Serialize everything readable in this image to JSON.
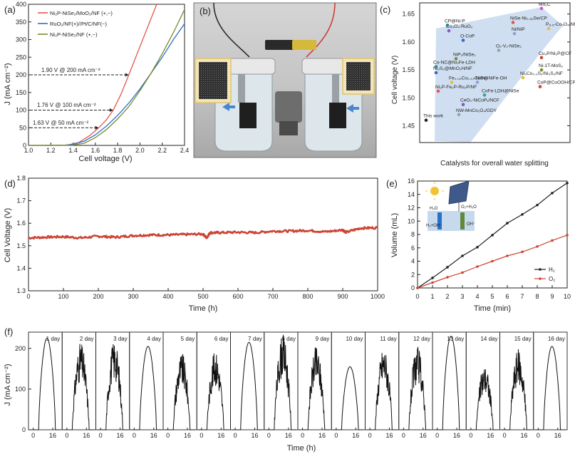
{
  "panel_labels": [
    "(a)",
    "(b)",
    "(c)",
    "(d)",
    "(e)",
    "(f)"
  ],
  "colors": {
    "red": "#e8564b",
    "blue": "#2c6fc7",
    "olive": "#7a8a2a",
    "black": "#222222",
    "drab": "#cc4433",
    "teal": "#2aa1a8",
    "purple": "#8a56c6",
    "yellow": "#e3c23a",
    "arrow_band": "#a8c4e6"
  },
  "chart_data": [
    {
      "id": "a",
      "type": "line",
      "xlabel": "Cell voltage (V)",
      "ylabel": "J (mA cm⁻²)",
      "xlim": [
        1.0,
        2.4
      ],
      "ylim": [
        0,
        400
      ],
      "xticks": [
        "1.0",
        "1.2",
        "1.4",
        "1.6",
        "1.8",
        "2.0",
        "2.2",
        "2.4"
      ],
      "yticks": [
        "0",
        "50",
        "100",
        "150",
        "200",
        "250",
        "300",
        "350",
        "400"
      ],
      "legend": [
        {
          "label": "Ni₂P-NiSe₂/MoO₂/NF (+,−)",
          "color": "#e8564b"
        },
        {
          "label": "RuO₂/NF(+)//Pt/C/NF(−)",
          "color": "#2c6fc7"
        },
        {
          "label": "Ni₂P-NiSe₂/NF (+,−)",
          "color": "#7a8a2a"
        }
      ],
      "series": [
        {
          "name": "Ni₂P-NiSe₂/MoO₂/NF (+,−)",
          "color": "#e8564b",
          "x": [
            1.0,
            1.2,
            1.35,
            1.45,
            1.55,
            1.63,
            1.7,
            1.76,
            1.83,
            1.9,
            2.0,
            2.1,
            2.15
          ],
          "y": [
            0,
            0,
            1,
            8,
            28,
            50,
            73,
            100,
            145,
            200,
            280,
            360,
            400
          ]
        },
        {
          "name": "RuO₂/NF(+)//Pt/C/NF(−)",
          "color": "#2c6fc7",
          "x": [
            1.0,
            1.3,
            1.4,
            1.5,
            1.6,
            1.7,
            1.8,
            1.9,
            2.0,
            2.1,
            2.2,
            2.3,
            2.4
          ],
          "y": [
            0,
            0,
            3,
            12,
            30,
            55,
            85,
            120,
            160,
            205,
            250,
            300,
            345
          ]
        },
        {
          "name": "Ni₂P-NiSe₂/NF (+,−)",
          "color": "#7a8a2a",
          "x": [
            1.0,
            1.4,
            1.5,
            1.6,
            1.7,
            1.8,
            1.9,
            2.0,
            2.1,
            2.2,
            2.3,
            2.4
          ],
          "y": [
            0,
            1,
            6,
            22,
            45,
            75,
            110,
            155,
            205,
            260,
            320,
            385
          ]
        }
      ],
      "annotations": [
        {
          "text": "1.90 V @ 200 mA cm⁻²",
          "x": 1.9,
          "y": 200
        },
        {
          "text": "1.76 V @ 100 mA cm⁻²",
          "x": 1.76,
          "y": 100
        },
        {
          "text": "1.63 V @ 50 mA cm⁻²",
          "x": 1.63,
          "y": 50
        }
      ]
    },
    {
      "id": "c",
      "type": "scatter",
      "xlabel": "Catalysts for overall water splitting",
      "ylabel": "Cell voltage (V)",
      "ylim": [
        1.42,
        1.67
      ],
      "yticks": [
        "1.45",
        "1.50",
        "1.55",
        "1.60",
        "1.65"
      ],
      "points": [
        {
          "label": "CP@Ni-P",
          "y": 1.63,
          "color": "#2aa1a8"
        },
        {
          "label": "Co₃O₄-RuO₂",
          "y": 1.62,
          "color": "#8a56c6"
        },
        {
          "label": "O-CoP",
          "y": 1.603,
          "color": "#2c6fc7"
        },
        {
          "label": "NiSe-Ni₀.₈₅Se/CP",
          "y": 1.635,
          "color": "#e8564b"
        },
        {
          "label": "Ni/NiP",
          "y": 1.615,
          "color": "#9a9ad0"
        },
        {
          "label": "P₈.₆-Co₃O₄/NF",
          "y": 1.624,
          "color": "#e3c23a"
        },
        {
          "label": "Mo₂C",
          "y": 1.66,
          "color": "#cc55cc"
        },
        {
          "label": "O₂-V₂-NiSe₂",
          "y": 1.585,
          "color": "#a0a0a0"
        },
        {
          "label": "NiP₂/NiSe₂",
          "y": 1.57,
          "color": "#7a8a2a"
        },
        {
          "label": "Cu₃P/Ni₂P@CF",
          "y": 1.572,
          "color": "#cc4433"
        },
        {
          "label": "Co-NC@Ni₃Fe-LDH",
          "y": 1.556,
          "color": "#2aa1a8"
        },
        {
          "label": "Ni₃S₂@MnO₂H/NF",
          "y": 1.545,
          "color": "#2c6fc7"
        },
        {
          "label": "Ni-1T-MoS₂",
          "y": 1.55,
          "color": "#7a8a2a"
        },
        {
          "label": "Fe₀.₀₉Co₀.₁₃-NiSe₂",
          "y": 1.528,
          "color": "#e3c23a"
        },
        {
          "label": "CoP@NiFe-OH",
          "y": 1.528,
          "color": "#9a9ad0"
        },
        {
          "label": "Ni₃Co₀.₃S₂/Ni₃S₂/NF",
          "y": 1.536,
          "color": "#e3c23a"
        },
        {
          "label": "CoP@CoOOH/CP",
          "y": 1.52,
          "color": "#cc4433"
        },
        {
          "label": "Ni₂P-Fe₂P-Ru₂P/NF",
          "y": 1.512,
          "color": "#e8564b"
        },
        {
          "label": "CoFe-LDH@NiSe",
          "y": 1.505,
          "color": "#2aa1a8"
        },
        {
          "label": "CeO₂-NiCoPₓ/NCF",
          "y": 1.488,
          "color": "#8a56c6"
        },
        {
          "label": "NW-MnCo₂O₄/GDY",
          "y": 1.47,
          "color": "#a0a0a0"
        },
        {
          "label": "This work",
          "y": 1.46,
          "color": "#222222"
        }
      ]
    },
    {
      "id": "d",
      "type": "line",
      "xlabel": "Time (h)",
      "ylabel": "Cell Voltage (V)",
      "xlim": [
        0,
        1000
      ],
      "ylim": [
        1.3,
        1.8
      ],
      "xticks": [
        "0",
        "100",
        "200",
        "300",
        "400",
        "500",
        "600",
        "700",
        "800",
        "900",
        "1000"
      ],
      "yticks": [
        "1.3",
        "1.4",
        "1.5",
        "1.6",
        "1.7",
        "1.8"
      ],
      "series": [
        {
          "name": "Cell voltage",
          "color": "#cc4433",
          "x": [
            0,
            50,
            100,
            150,
            200,
            250,
            300,
            350,
            400,
            450,
            500,
            510,
            520,
            550,
            600,
            650,
            700,
            750,
            800,
            850,
            900,
            910,
            950,
            1000
          ],
          "y": [
            1.535,
            1.538,
            1.54,
            1.535,
            1.542,
            1.538,
            1.545,
            1.548,
            1.548,
            1.55,
            1.552,
            1.535,
            1.558,
            1.558,
            1.56,
            1.558,
            1.565,
            1.565,
            1.568,
            1.562,
            1.57,
            1.56,
            1.578,
            1.58
          ]
        }
      ]
    },
    {
      "id": "e",
      "type": "line",
      "xlabel": "Time (min)",
      "ylabel": "Volume (mL)",
      "xlim": [
        0,
        10
      ],
      "ylim": [
        0,
        16
      ],
      "xticks": [
        "0",
        "1",
        "2",
        "3",
        "4",
        "5",
        "6",
        "7",
        "8",
        "9",
        "10"
      ],
      "yticks": [
        "0",
        "2",
        "4",
        "6",
        "8",
        "10",
        "12",
        "14",
        "16"
      ],
      "series": [
        {
          "name": "H₂",
          "color": "#222222",
          "x": [
            0,
            1,
            2,
            3,
            4,
            5,
            6,
            7,
            8,
            9,
            10
          ],
          "y": [
            0,
            1.5,
            3.1,
            4.8,
            6.1,
            7.9,
            9.7,
            11.0,
            12.4,
            14.2,
            15.7
          ]
        },
        {
          "name": "O₂",
          "color": "#cc4433",
          "x": [
            0,
            1,
            2,
            3,
            4,
            5,
            6,
            7,
            8,
            9,
            10
          ],
          "y": [
            0,
            0.8,
            1.6,
            2.3,
            3.2,
            4.0,
            4.8,
            5.4,
            6.2,
            7.1,
            7.9
          ]
        }
      ],
      "inset_labels": [
        "H₂O",
        "O₂+H₂O",
        "H₂+OH⁻",
        "OH⁻"
      ]
    },
    {
      "id": "f",
      "type": "line",
      "xlabel": "Time (h)",
      "ylabel": "J (mA cm⁻²)",
      "ylim": [
        0,
        240
      ],
      "yticks": [
        "0",
        "100",
        "200"
      ],
      "xticks": [
        "0",
        "16"
      ],
      "days": [
        "1 day",
        "2 day",
        "3 day",
        "4 day",
        "5 day",
        "6 day",
        "7 day",
        "8 day",
        "9 day",
        "10 day",
        "11 day",
        "12 day",
        "13 day",
        "14 day",
        "15 day",
        "16 day"
      ],
      "peaks": [
        225,
        215,
        220,
        205,
        190,
        195,
        215,
        235,
        205,
        155,
        205,
        205,
        230,
        160,
        200,
        205
      ]
    }
  ]
}
